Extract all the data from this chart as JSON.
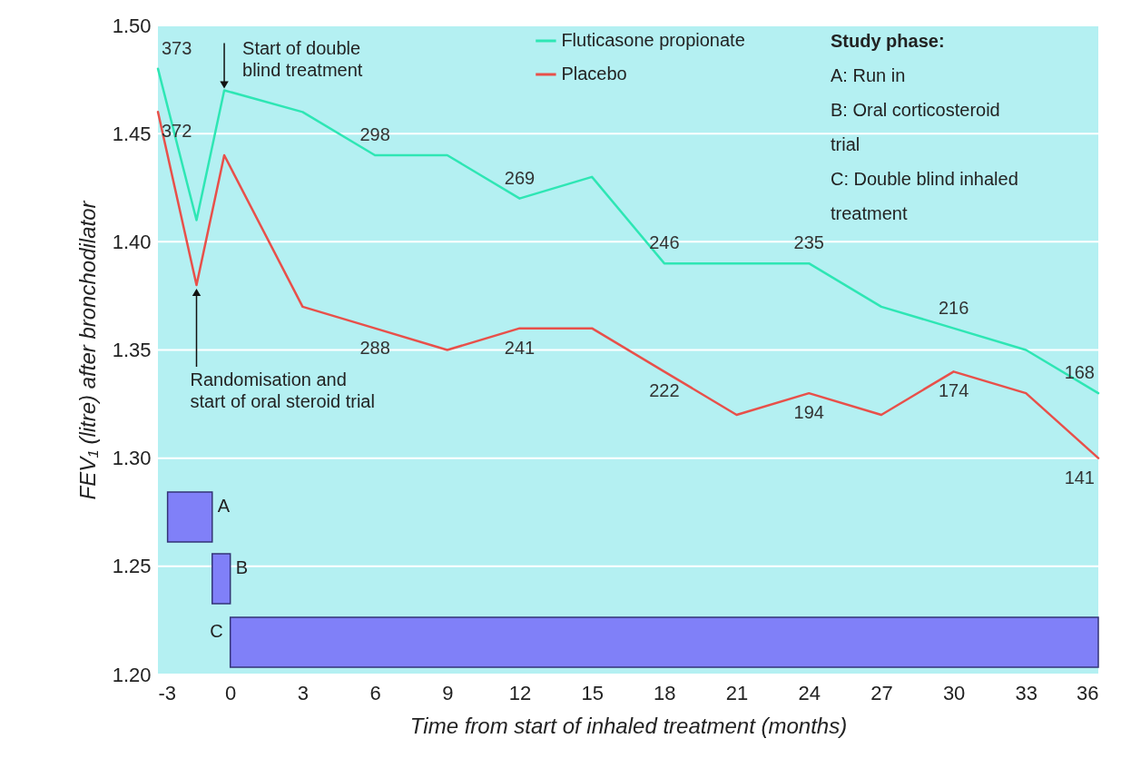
{
  "chart_data": {
    "type": "line",
    "xlabel": "Time from start of inhaled treatment (months)",
    "ylabel": "FEV₁ (litre) after bronchodilator",
    "x": [
      -3,
      -1.4,
      -0.25,
      3,
      6,
      9,
      12,
      15,
      18,
      21,
      24,
      27,
      30,
      33,
      36
    ],
    "series": [
      {
        "name": "Fluticasone propionate",
        "color": "#2ee6b4",
        "values": [
          1.48,
          1.41,
          1.47,
          1.46,
          1.44,
          1.44,
          1.42,
          1.43,
          1.39,
          1.39,
          1.39,
          1.37,
          1.36,
          1.35,
          1.33
        ]
      },
      {
        "name": "Placebo",
        "color": "#e8504a",
        "values": [
          1.46,
          1.38,
          1.44,
          1.37,
          1.36,
          1.35,
          1.36,
          1.36,
          1.34,
          1.32,
          1.33,
          1.32,
          1.34,
          1.33,
          1.3
        ]
      }
    ],
    "xlim": [
      -3,
      36
    ],
    "xticks": [
      -3,
      0,
      3,
      6,
      9,
      12,
      15,
      18,
      21,
      24,
      27,
      30,
      33,
      36
    ],
    "ylim": [
      1.2,
      1.5
    ],
    "yticks": [
      {
        "value": 1.2,
        "label": "1.20"
      },
      {
        "value": 1.25,
        "label": "1.25"
      },
      {
        "value": 1.3,
        "label": "1.30"
      },
      {
        "value": 1.35,
        "label": "1.35"
      },
      {
        "value": 1.4,
        "label": "1.40"
      },
      {
        "value": 1.45,
        "label": "1.45"
      },
      {
        "value": 1.5,
        "label": "1.50"
      }
    ],
    "grid": "y",
    "legend": "top",
    "bands": [
      {
        "axis": "x",
        "from": -2.6,
        "to": -0.75,
        "label": "A",
        "color": "#8080f8"
      },
      {
        "axis": "x",
        "from": -0.75,
        "to": 0,
        "label": "B",
        "color": "#8080f8"
      },
      {
        "axis": "x",
        "from": 0,
        "to": 36,
        "label": "C",
        "color": "#8080f8"
      }
    ],
    "annotations": [
      {
        "text": "Start of double\nblind treatment",
        "x": -0.25,
        "y": 1.47
      },
      {
        "text": "Randomisation and\nstart of oral steroid trial",
        "x": -1.4,
        "y": 1.38
      },
      {
        "text": "373",
        "x": -3,
        "y": 1.48
      },
      {
        "text": "372",
        "x": -3,
        "y": 1.46
      },
      {
        "text": "298",
        "x": 6,
        "y": 1.44
      },
      {
        "text": "269",
        "x": 12,
        "y": 1.42
      },
      {
        "text": "246",
        "x": 18,
        "y": 1.39
      },
      {
        "text": "235",
        "x": 24,
        "y": 1.39
      },
      {
        "text": "216",
        "x": 30,
        "y": 1.36
      },
      {
        "text": "168",
        "x": 36,
        "y": 1.33
      },
      {
        "text": "288",
        "x": 6,
        "y": 1.36
      },
      {
        "text": "241",
        "x": 12,
        "y": 1.36
      },
      {
        "text": "222",
        "x": 18,
        "y": 1.34
      },
      {
        "text": "194",
        "x": 24,
        "y": 1.33
      },
      {
        "text": "174",
        "x": 30,
        "y": 1.34
      },
      {
        "text": "141",
        "x": 36,
        "y": 1.3
      },
      "Study phase:",
      "A: Run in",
      "B: Oral corticosteroid trial",
      "C: Double blind inhaled treatment"
    ]
  }
}
